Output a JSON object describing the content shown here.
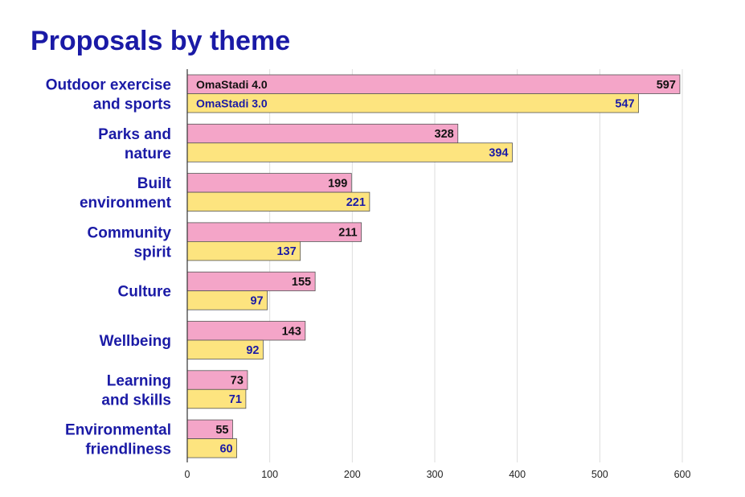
{
  "chart_data": {
    "type": "bar",
    "orientation": "horizontal",
    "title": "Proposals by theme",
    "categories": [
      [
        "Outdoor exercise",
        "and sports"
      ],
      [
        "Parks and",
        "nature"
      ],
      [
        "Built",
        "environment"
      ],
      [
        "Community",
        "spirit"
      ],
      [
        "Culture"
      ],
      [
        "Wellbeing"
      ],
      [
        "Learning",
        "and skills"
      ],
      [
        "Environmental",
        "friendliness"
      ]
    ],
    "series": [
      {
        "name": "OmaStadi 4.0",
        "color": "#f4a5c8",
        "label_color": "#111111",
        "values": [
          597,
          328,
          199,
          211,
          155,
          143,
          73,
          55
        ]
      },
      {
        "name": "OmaStadi 3.0",
        "color": "#fde47f",
        "label_color": "#1a1aa6",
        "values": [
          547,
          394,
          221,
          137,
          97,
          92,
          71,
          60
        ]
      }
    ],
    "xlim": [
      0,
      600
    ],
    "xticks": [
      "0",
      "100",
      "200",
      "300",
      "400",
      "500",
      "600"
    ],
    "xlabel": "",
    "ylabel": "",
    "grid": "vertical",
    "legend": "inside-first-bars",
    "colors": {
      "title": "#1a1aa6",
      "category_label": "#1a1aa6",
      "gridline": "#dddddd",
      "axis": "#333333",
      "bar_stroke": "#555555"
    }
  }
}
